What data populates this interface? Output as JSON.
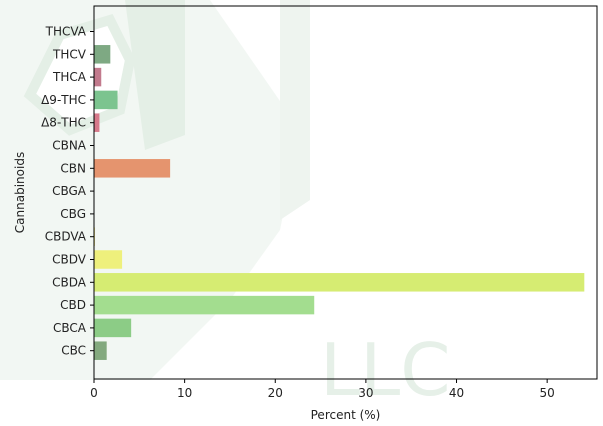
{
  "chart_data": {
    "type": "bar",
    "orientation": "horizontal",
    "xlabel": "Percent (%)",
    "ylabel": "Cannabinoids",
    "xlim": [
      0,
      55.5
    ],
    "xticks": [
      0,
      10,
      20,
      30,
      40,
      50
    ],
    "grid": false,
    "categories": [
      "THCVA",
      "THCV",
      "THCA",
      "Δ9-THC",
      "Δ8-THC",
      "CBNA",
      "CBN",
      "CBGA",
      "CBG",
      "CBDVA",
      "CBDV",
      "CBDA",
      "CBD",
      "CBCA",
      "CBC"
    ],
    "values": [
      0,
      1.8,
      0.8,
      2.6,
      0.6,
      0,
      8.4,
      0,
      0,
      0.1,
      3.1,
      54.1,
      24.3,
      4.1,
      1.4
    ],
    "colors": [
      "#b9d6bf",
      "#7ea983",
      "#c27a8d",
      "#7cc48f",
      "#d6798a",
      "#b9d6bf",
      "#e5946e",
      "#b9d6bf",
      "#b9d6bf",
      "#e6d97a",
      "#eef07c",
      "#d6ec72",
      "#a3dd8f",
      "#8ccc86",
      "#83a97e"
    ]
  },
  "watermark": {
    "text": "LLC",
    "color": "#e6f0e8"
  }
}
